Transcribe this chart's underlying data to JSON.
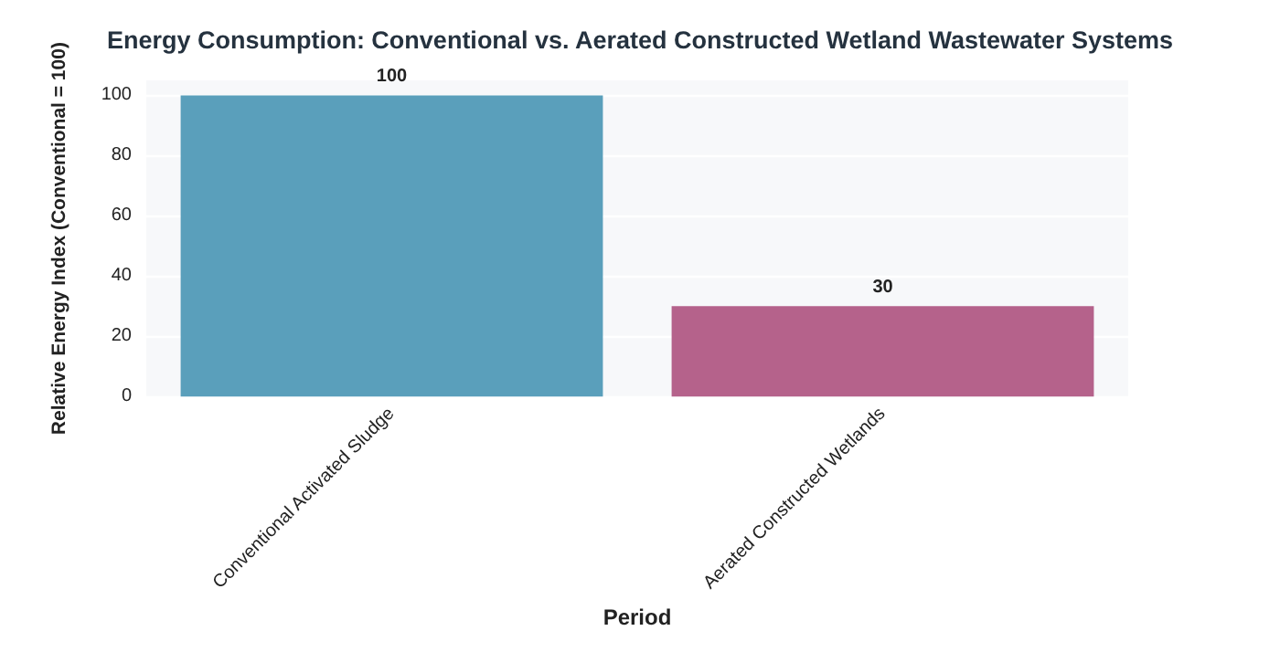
{
  "chart_data": {
    "type": "bar",
    "title": "Energy Consumption: Conventional vs. Aerated Constructed Wetland Wastewater Systems",
    "xlabel": "Period",
    "ylabel": "Relative Energy Index (Conventional = 100)",
    "categories": [
      "Conventional Activated Sludge",
      "Aerated Constructed Wetlands"
    ],
    "values": [
      100,
      30
    ],
    "colors": [
      "#5a9fbb",
      "#b5628b"
    ],
    "ylim": [
      0,
      105
    ],
    "yticks": [
      0,
      20,
      40,
      60,
      80,
      100
    ],
    "grid": "y",
    "data_labels": true
  }
}
